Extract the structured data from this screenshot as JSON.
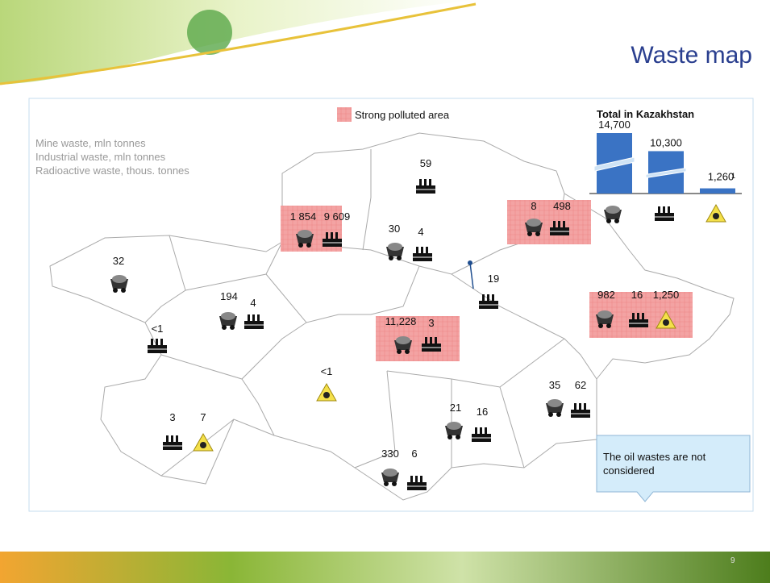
{
  "header": {
    "title": "Waste map"
  },
  "legend": {
    "polluted": "Strong polluted area",
    "lines": [
      "Mine waste, mln tonnes",
      "Industrial waste, mln tonnes",
      "Radioactive waste, thous. tonnes"
    ]
  },
  "inset": {
    "title": "Total in Kazakhstan",
    "values": [
      14700,
      10300,
      1260
    ],
    "value_labels": [
      "14,700",
      "10,300",
      "1,260"
    ],
    "footnote": "1"
  },
  "labels": [
    "32",
    "<1",
    "194",
    "4",
    "3",
    "7",
    "<1",
    "1 854",
    "9 609",
    "30",
    "4",
    "59",
    "8",
    "498",
    "19",
    "11,228",
    "3",
    "982",
    "16",
    "1,250",
    "35",
    "62",
    "21",
    "16",
    "330",
    "6"
  ],
  "note": "The oil wastes are not considered",
  "page": "9"
}
